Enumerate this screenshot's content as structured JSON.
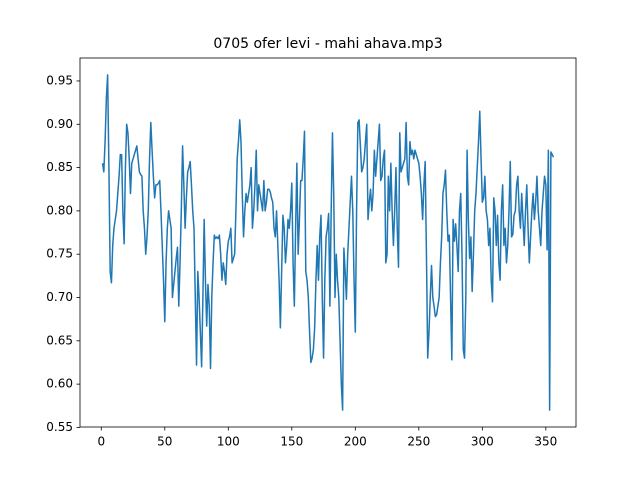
{
  "chart_data": {
    "type": "line",
    "title": "0705 ofer levi - mahi ahava.mp3",
    "color": "#1f77b4",
    "x": [
      1,
      2,
      3,
      4,
      5,
      6,
      7,
      8,
      9,
      10,
      11,
      12,
      13,
      14,
      15,
      16,
      17,
      18,
      19,
      20,
      21,
      22,
      23,
      24,
      25,
      26,
      27,
      28,
      29,
      30,
      31,
      32,
      33,
      34,
      35,
      36,
      37,
      38,
      39,
      40,
      41,
      42,
      43,
      44,
      45,
      46,
      47,
      48,
      49,
      50,
      51,
      52,
      53,
      54,
      55,
      56,
      57,
      58,
      59,
      60,
      61,
      62,
      63,
      64,
      65,
      66,
      67,
      68,
      69,
      70,
      71,
      72,
      73,
      74,
      75,
      76,
      77,
      78,
      79,
      80,
      81,
      82,
      83,
      84,
      85,
      86,
      87,
      88,
      89,
      90,
      91,
      92,
      93,
      94,
      95,
      96,
      97,
      98,
      99,
      100,
      101,
      102,
      103,
      104,
      105,
      106,
      107,
      108,
      109,
      110,
      111,
      112,
      113,
      114,
      115,
      116,
      117,
      118,
      119,
      120,
      121,
      122,
      123,
      124,
      125,
      126,
      127,
      128,
      129,
      130,
      131,
      132,
      133,
      134,
      135,
      136,
      137,
      138,
      139,
      140,
      141,
      142,
      143,
      144,
      145,
      146,
      147,
      148,
      149,
      150,
      151,
      152,
      153,
      154,
      155,
      156,
      157,
      158,
      159,
      160,
      161,
      162,
      163,
      164,
      165,
      166,
      167,
      168,
      169,
      170,
      171,
      172,
      173,
      174,
      175,
      176,
      177,
      178,
      179,
      180,
      181,
      182,
      183,
      184,
      185,
      186,
      187,
      188,
      189,
      190,
      191,
      192,
      193,
      194,
      195,
      196,
      197,
      198,
      199,
      200,
      201,
      202,
      203,
      204,
      205,
      206,
      207,
      208,
      209,
      210,
      211,
      212,
      213,
      214,
      215,
      216,
      217,
      218,
      219,
      220,
      221,
      222,
      223,
      224,
      225,
      226,
      227,
      228,
      229,
      230,
      231,
      232,
      233,
      234,
      235,
      236,
      237,
      238,
      239,
      240,
      241,
      242,
      243,
      244,
      245,
      246,
      247,
      248,
      249,
      250,
      251,
      252,
      253,
      254,
      255,
      256,
      257,
      258,
      259,
      260,
      261,
      262,
      263,
      264,
      265,
      266,
      267,
      268,
      269,
      270,
      271,
      272,
      273,
      274,
      275,
      276,
      277,
      278,
      279,
      280,
      281,
      282,
      283,
      284,
      285,
      286,
      287,
      288,
      289,
      290,
      291,
      292,
      293,
      294,
      295,
      296,
      297,
      298,
      299,
      300,
      301,
      302,
      303,
      304,
      305,
      306,
      307,
      308,
      309,
      310,
      311,
      312,
      313,
      314,
      315,
      316,
      317,
      318,
      319,
      320,
      321,
      322,
      323,
      324,
      325,
      326,
      327,
      328,
      329,
      330,
      331,
      332,
      333,
      334,
      335,
      336,
      337,
      338,
      339,
      340,
      341,
      342,
      343,
      344,
      345,
      346,
      347,
      348,
      349,
      350,
      351,
      352,
      353,
      354,
      355,
      356
    ],
    "values": [
      0.855,
      0.845,
      0.88,
      0.93,
      0.957,
      0.85,
      0.73,
      0.717,
      0.76,
      0.78,
      0.79,
      0.8,
      0.82,
      0.84,
      0.865,
      0.865,
      0.8,
      0.762,
      0.85,
      0.9,
      0.89,
      0.86,
      0.82,
      0.855,
      0.86,
      0.865,
      0.87,
      0.875,
      0.86,
      0.845,
      0.842,
      0.84,
      0.8,
      0.78,
      0.75,
      0.77,
      0.8,
      0.86,
      0.902,
      0.87,
      0.84,
      0.815,
      0.83,
      0.83,
      0.832,
      0.835,
      0.8,
      0.76,
      0.72,
      0.672,
      0.74,
      0.78,
      0.8,
      0.79,
      0.78,
      0.7,
      0.715,
      0.73,
      0.745,
      0.758,
      0.69,
      0.74,
      0.8,
      0.875,
      0.83,
      0.78,
      0.815,
      0.845,
      0.85,
      0.857,
      0.83,
      0.8,
      0.78,
      0.7,
      0.622,
      0.73,
      0.7,
      0.66,
      0.62,
      0.7,
      0.79,
      0.72,
      0.667,
      0.715,
      0.69,
      0.618,
      0.7,
      0.74,
      0.772,
      0.768,
      0.77,
      0.768,
      0.772,
      0.75,
      0.72,
      0.74,
      0.73,
      0.715,
      0.75,
      0.765,
      0.77,
      0.78,
      0.74,
      0.745,
      0.75,
      0.8,
      0.86,
      0.88,
      0.905,
      0.88,
      0.82,
      0.77,
      0.8,
      0.82,
      0.81,
      0.82,
      0.83,
      0.85,
      0.78,
      0.8,
      0.83,
      0.87,
      0.8,
      0.83,
      0.82,
      0.81,
      0.8,
      0.835,
      0.8,
      0.81,
      0.825,
      0.825,
      0.822,
      0.815,
      0.81,
      0.78,
      0.77,
      0.8,
      0.76,
      0.72,
      0.665,
      0.73,
      0.795,
      0.78,
      0.74,
      0.76,
      0.79,
      0.78,
      0.8,
      0.832,
      0.74,
      0.69,
      0.78,
      0.855,
      0.75,
      0.79,
      0.835,
      0.835,
      0.86,
      0.892,
      0.73,
      0.72,
      0.7,
      0.66,
      0.625,
      0.63,
      0.64,
      0.665,
      0.72,
      0.76,
      0.72,
      0.77,
      0.795,
      0.7,
      0.63,
      0.72,
      0.77,
      0.78,
      0.797,
      0.69,
      0.8,
      0.89,
      0.82,
      0.7,
      0.75,
      0.72,
      0.7,
      0.65,
      0.6,
      0.57,
      0.757,
      0.73,
      0.698,
      0.75,
      0.78,
      0.81,
      0.84,
      0.8,
      0.72,
      0.66,
      0.8,
      0.902,
      0.905,
      0.875,
      0.845,
      0.85,
      0.86,
      0.88,
      0.9,
      0.79,
      0.81,
      0.825,
      0.8,
      0.82,
      0.87,
      0.84,
      0.86,
      0.88,
      0.9,
      0.835,
      0.84,
      0.86,
      0.87,
      0.74,
      0.75,
      0.84,
      0.8,
      0.855,
      0.8,
      0.76,
      0.8,
      0.85,
      0.78,
      0.735,
      0.89,
      0.845,
      0.85,
      0.855,
      0.86,
      0.902,
      0.84,
      0.83,
      0.88,
      0.865,
      0.87,
      0.86,
      0.87,
      0.865,
      0.86,
      0.855,
      0.84,
      0.82,
      0.79,
      0.83,
      0.857,
      0.75,
      0.63,
      0.66,
      0.7,
      0.737,
      0.7,
      0.69,
      0.678,
      0.68,
      0.69,
      0.7,
      0.74,
      0.77,
      0.82,
      0.83,
      0.847,
      0.8,
      0.765,
      0.772,
      0.7,
      0.628,
      0.79,
      0.765,
      0.785,
      0.76,
      0.73,
      0.8,
      0.82,
      0.75,
      0.64,
      0.63,
      0.7,
      0.87,
      0.79,
      0.745,
      0.77,
      0.707,
      0.75,
      0.8,
      0.82,
      0.85,
      0.88,
      0.915,
      0.86,
      0.81,
      0.815,
      0.84,
      0.8,
      0.79,
      0.76,
      0.78,
      0.72,
      0.695,
      0.815,
      0.8,
      0.76,
      0.795,
      0.74,
      0.72,
      0.8,
      0.83,
      0.76,
      0.78,
      0.74,
      0.76,
      0.8,
      0.857,
      0.77,
      0.773,
      0.795,
      0.8,
      0.83,
      0.84,
      0.8,
      0.78,
      0.82,
      0.79,
      0.76,
      0.8,
      0.83,
      0.78,
      0.74,
      0.77,
      0.8,
      0.82,
      0.79,
      0.81,
      0.84,
      0.8,
      0.78,
      0.76,
      0.8,
      0.82,
      0.84,
      0.83,
      0.755,
      0.87,
      0.57,
      0.868,
      0.865,
      0.862
    ],
    "xlim": [
      -16.75,
      373.75
    ],
    "xticks": [
      0,
      50,
      100,
      150,
      200,
      250,
      300,
      350
    ],
    "ylim": [
      0.5505,
      0.9765
    ],
    "yticks": [
      0.55,
      {
        "value": 0.6,
        "label": "0.60"
      },
      0.65,
      {
        "value": 0.7,
        "label": "0.70"
      },
      0.75,
      {
        "value": 0.8,
        "label": "0.80"
      },
      0.85,
      {
        "value": 0.9,
        "label": "0.90"
      },
      0.95
    ]
  }
}
